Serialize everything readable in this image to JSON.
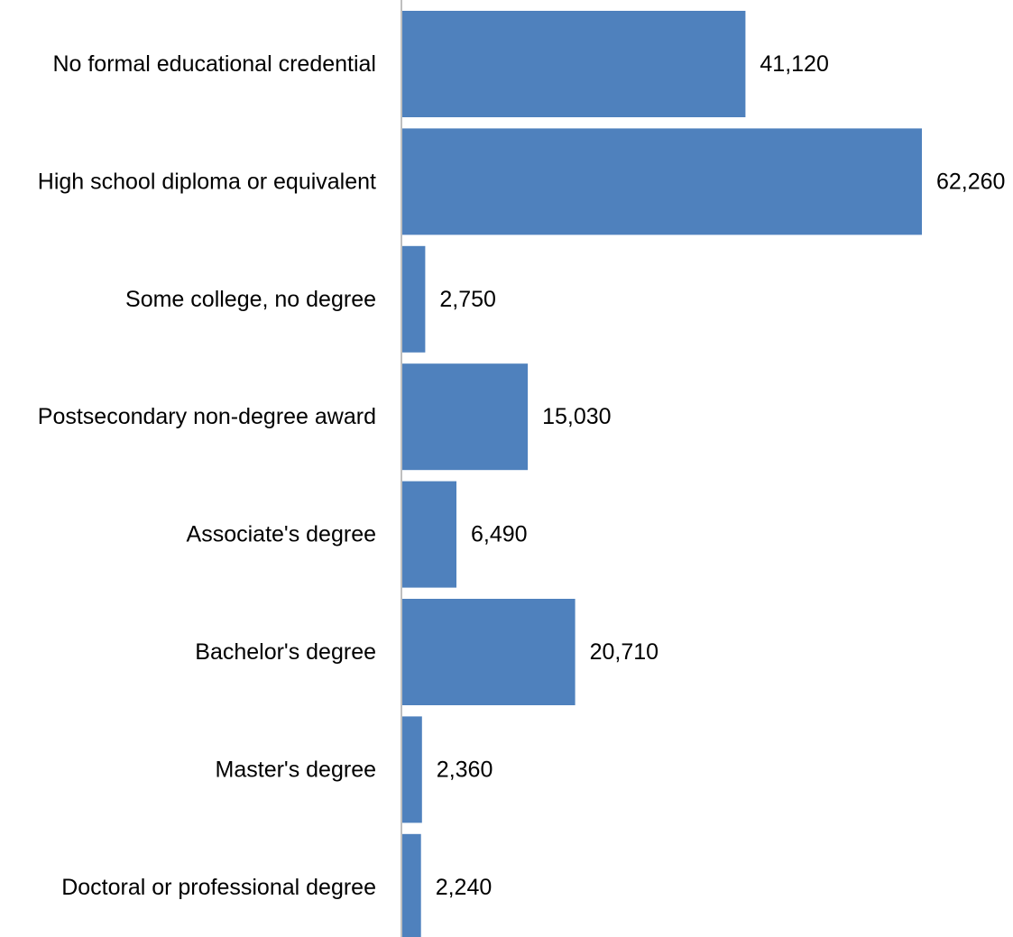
{
  "chart_data": {
    "type": "bar",
    "orientation": "horizontal",
    "categories": [
      "No formal educational credential",
      "High school diploma or equivalent",
      "Some college, no degree",
      "Postsecondary non-degree award",
      "Associate's degree",
      "Bachelor's degree",
      "Master's degree",
      "Doctoral or professional degree"
    ],
    "values": [
      41120,
      62260,
      2750,
      15030,
      6490,
      20710,
      2360,
      2240
    ],
    "value_labels": [
      "41,120",
      "62,260",
      "2,750",
      "15,030",
      "6,490",
      "20,710",
      "2,360",
      "2,240"
    ],
    "xlim": [
      0,
      62260
    ],
    "grid": false,
    "legend": "none",
    "bar_color": "#4F81BD",
    "axis_color": "#BFBFBF"
  }
}
